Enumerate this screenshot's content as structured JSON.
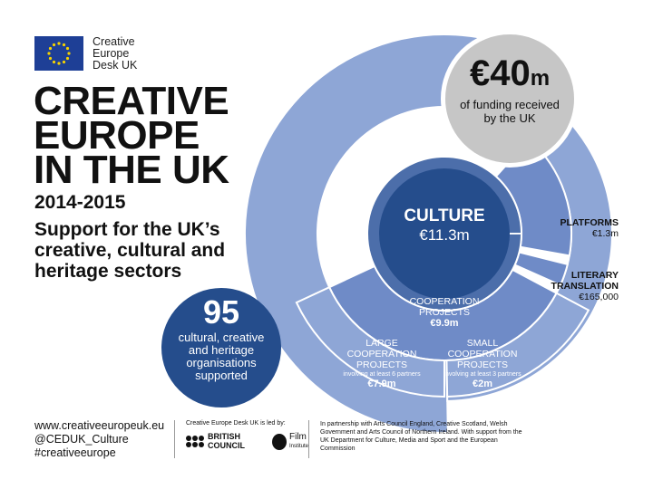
{
  "logo": {
    "line1": "Creative",
    "line2": "Europe",
    "line3": "Desk UK"
  },
  "title": {
    "line1": "CREATIVE",
    "line2": "EUROPE",
    "line3": "IN THE UK"
  },
  "years": "2014-2015",
  "subtitle": {
    "line1": "Support for the UK’s",
    "line2": "creative, cultural and",
    "line3": "heritage sectors"
  },
  "organisations": {
    "count": "95",
    "line1": "cultural, creative",
    "line2": "and heritage",
    "line3": "organisations",
    "line4": "supported"
  },
  "total": {
    "amount": "€40",
    "unit": "m",
    "line1": "of funding received",
    "line2": "by the UK"
  },
  "culture": {
    "label": "CULTURE",
    "value": "€11.3m"
  },
  "segments": {
    "platforms": {
      "label": "PLATFORMS",
      "value": "€1.3m"
    },
    "literary": {
      "line1": "LITERARY",
      "line2": "TRANSLATION",
      "value": "€165,000"
    },
    "cooperation": {
      "line1": "COOPERATION",
      "line2": "PROJECTS",
      "value": "€9.9m"
    },
    "large": {
      "line1": "LARGE",
      "line2": "COOPERATION",
      "line3": "PROJECTS",
      "note": "involving at least 6 partners",
      "value": "€7.9m"
    },
    "small": {
      "line1": "SMALL",
      "line2": "COOPERATION",
      "line3": "PROJECTS",
      "note": "involving at least 3 partners",
      "value": "€2m"
    }
  },
  "footer": {
    "website": "www.creativeeuropeuk.eu",
    "twitter": "@CEDUK_Culture",
    "hashtag": "#creativeeurope",
    "led_by": "Creative Europe Desk UK is led by:",
    "british_council_1": "BRITISH",
    "british_council_2": "COUNCIL",
    "bfi_1": "Film",
    "bfi_2": "Institute",
    "partnership": "In partnership with Arts Council England, Creative Scotland, Welsh Government and Arts Council of Northern Ireland. With support from the UK Department for Culture, Media and Sport and the European Commission"
  },
  "colors": {
    "outer": "#8ea6d6",
    "middle": "#6f8bc7",
    "inner": "#4c6eaa",
    "center": "#254d8c",
    "grey": "#c6c6c6",
    "eu_blue": "#1e3f96",
    "eu_star": "#f6d200"
  }
}
